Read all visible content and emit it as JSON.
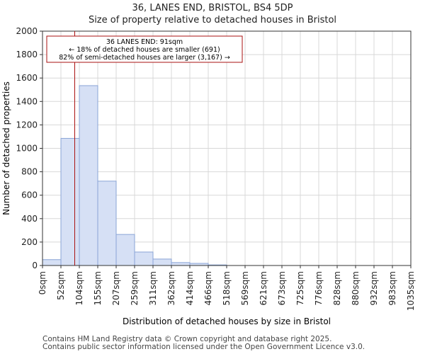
{
  "chart_data": {
    "type": "histogram",
    "title": "36, LANES END, BRISTOL, BS4 5DP",
    "subtitle": "Size of property relative to detached houses in Bristol",
    "xlabel": "Distribution of detached houses by size in Bristol",
    "ylabel": "Number of detached properties",
    "ylim": [
      0,
      2000
    ],
    "yticks": [
      0,
      200,
      400,
      600,
      800,
      1000,
      1200,
      1400,
      1600,
      1800,
      2000
    ],
    "categories": [
      "0sqm",
      "52sqm",
      "104sqm",
      "155sqm",
      "207sqm",
      "259sqm",
      "311sqm",
      "362sqm",
      "414sqm",
      "466sqm",
      "518sqm",
      "569sqm",
      "621sqm",
      "673sqm",
      "725sqm",
      "776sqm",
      "828sqm",
      "880sqm",
      "932sqm",
      "983sqm",
      "1035sqm"
    ],
    "values": [
      50,
      1085,
      1535,
      720,
      265,
      115,
      55,
      25,
      18,
      5,
      0,
      0,
      0,
      0,
      0,
      0,
      0,
      0,
      0,
      0
    ],
    "bar_color": "#d6e0f5",
    "bar_edge": "#8aa4d6",
    "marker": {
      "value": 91,
      "color": "#aa1111"
    },
    "annotation": {
      "line1": "36 LANES END: 91sqm",
      "line2": "← 18% of detached houses are smaller (691)",
      "line3": "82% of semi-detached houses are larger (3,167) →"
    }
  },
  "footer": {
    "line1": "Contains HM Land Registry data © Crown copyright and database right 2025.",
    "line2": "Contains public sector information licensed under the Open Government Licence v3.0."
  }
}
